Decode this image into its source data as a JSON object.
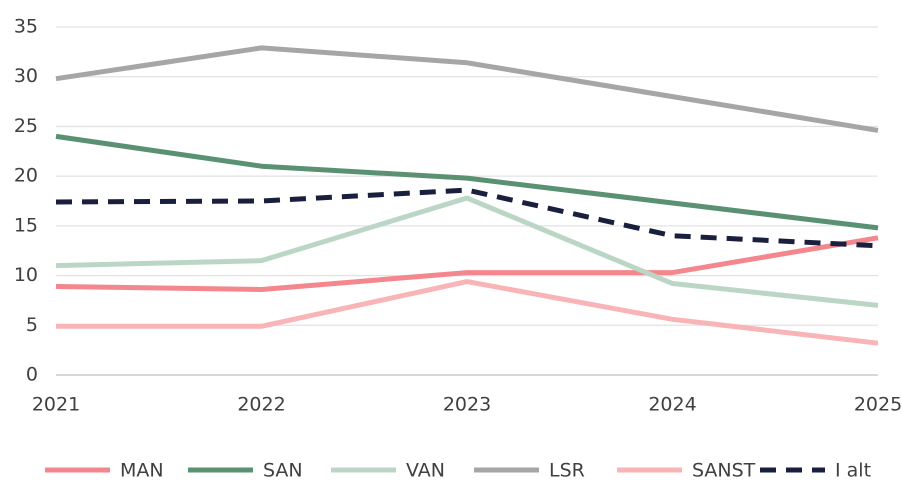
{
  "chart_data": {
    "type": "line",
    "categories": [
      "2021",
      "2022",
      "2023",
      "2024",
      "2025"
    ],
    "series": [
      {
        "name": "MAN",
        "color": "#f4878d",
        "values": [
          8.9,
          8.6,
          10.3,
          10.3,
          13.8
        ]
      },
      {
        "name": "SAN",
        "color": "#5a9173",
        "values": [
          24,
          21,
          19.8,
          17.3,
          14.8
        ]
      },
      {
        "name": "VAN",
        "color": "#bcd6c6",
        "values": [
          11,
          11.5,
          17.8,
          9.2,
          7
        ]
      },
      {
        "name": "LSR",
        "color": "#a6a6a6",
        "values": [
          29.8,
          32.9,
          31.4,
          28,
          24.6
        ]
      },
      {
        "name": "SANST",
        "color": "#f9b4b8",
        "values": [
          4.9,
          4.9,
          9.4,
          5.6,
          3.2
        ]
      },
      {
        "name": "I alt",
        "color": "#1a1f3d",
        "dashed": true,
        "values": [
          17.4,
          17.5,
          18.6,
          14,
          13
        ]
      }
    ],
    "ylim": [
      0,
      35
    ],
    "yticks": [
      0,
      5,
      10,
      15,
      20,
      25,
      30,
      35
    ],
    "grid": true,
    "legend": "bottom"
  }
}
